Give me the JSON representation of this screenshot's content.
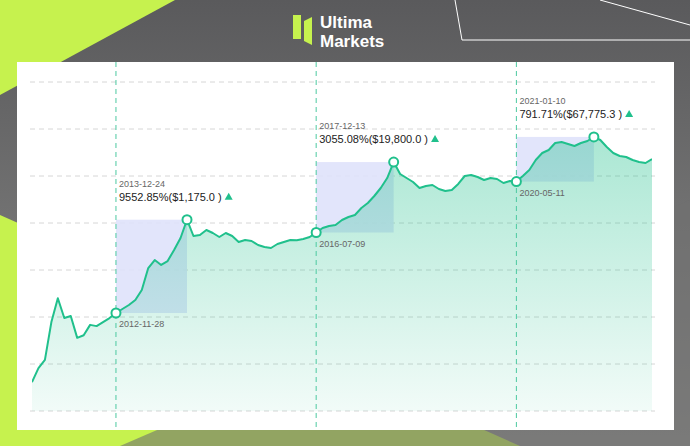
{
  "header": {
    "brand_lines": [
      "Ultima",
      "Markets"
    ]
  },
  "chart_data": {
    "type": "line",
    "color": "#20c08c",
    "log": "y",
    "grid": true,
    "tick_labels": false,
    "ylim": [
      0.1,
      1000000
    ],
    "yticks": [
      0.1,
      1,
      10,
      100,
      1000,
      10000,
      100000,
      1000000
    ],
    "categories": [
      null,
      null,
      null,
      null,
      null,
      null,
      null,
      null,
      null,
      null,
      null,
      null,
      null,
      "2012-11-28",
      null,
      null,
      null,
      null,
      null,
      null,
      null,
      null,
      null,
      null,
      "2013-12-24",
      null,
      null,
      null,
      null,
      null,
      null,
      null,
      null,
      null,
      null,
      null,
      null,
      null,
      null,
      null,
      null,
      null,
      null,
      null,
      "2016-07-09",
      null,
      null,
      null,
      null,
      null,
      null,
      null,
      null,
      null,
      null,
      null,
      "2017-12-13",
      null,
      null,
      null,
      null,
      null,
      null,
      null,
      null,
      null,
      null,
      null,
      null,
      null,
      null,
      null,
      null,
      null,
      null,
      "2020-05-11",
      null,
      null,
      null,
      null,
      null,
      null,
      null,
      null,
      null,
      null,
      null,
      "2021-01-10",
      null,
      null,
      null,
      null,
      null,
      null,
      null,
      null,
      null
    ],
    "values": [
      0.41,
      0.82,
      1.22,
      7.8,
      25,
      9.5,
      10.5,
      3.6,
      4.1,
      6.8,
      6.4,
      7.8,
      9.5,
      12.17,
      14.8,
      18,
      23,
      37.5,
      110,
      163,
      128,
      155,
      267,
      480,
      1175,
      529,
      556,
      710,
      612,
      504,
      612,
      529,
      394,
      435,
      414,
      340,
      308,
      294,
      357,
      394,
      435,
      430,
      457,
      504,
      627.6,
      783,
      863,
      906,
      1158,
      1342,
      1479,
      2084,
      2665,
      3753,
      5555,
      9060,
      19800,
      11040,
      9060,
      7450,
      5555,
      6125,
      6440,
      5285,
      4795,
      5035,
      6760,
      10000,
      10500,
      9525,
      8225,
      9060,
      8630,
      7095,
      7830,
      7600.5,
      10000,
      13420,
      21880,
      30830,
      35730,
      50350,
      52850,
      47970,
      43450,
      50350,
      55600,
      67775.3,
      58350,
      41400,
      30830,
      26660,
      25360,
      21880,
      19860,
      18920,
      23010
    ],
    "annotations": [
      {
        "from": "2012-11-28",
        "to": "2013-12-24",
        "text": "9552.85%($1,175.0 )"
      },
      {
        "from": "2016-07-09",
        "to": "2017-12-13",
        "text": "3055.08%($19,800.0 )"
      },
      {
        "from": "2020-05-11",
        "to": "2021-01-10",
        "text": "791.71%($67,775.3 )"
      }
    ]
  }
}
